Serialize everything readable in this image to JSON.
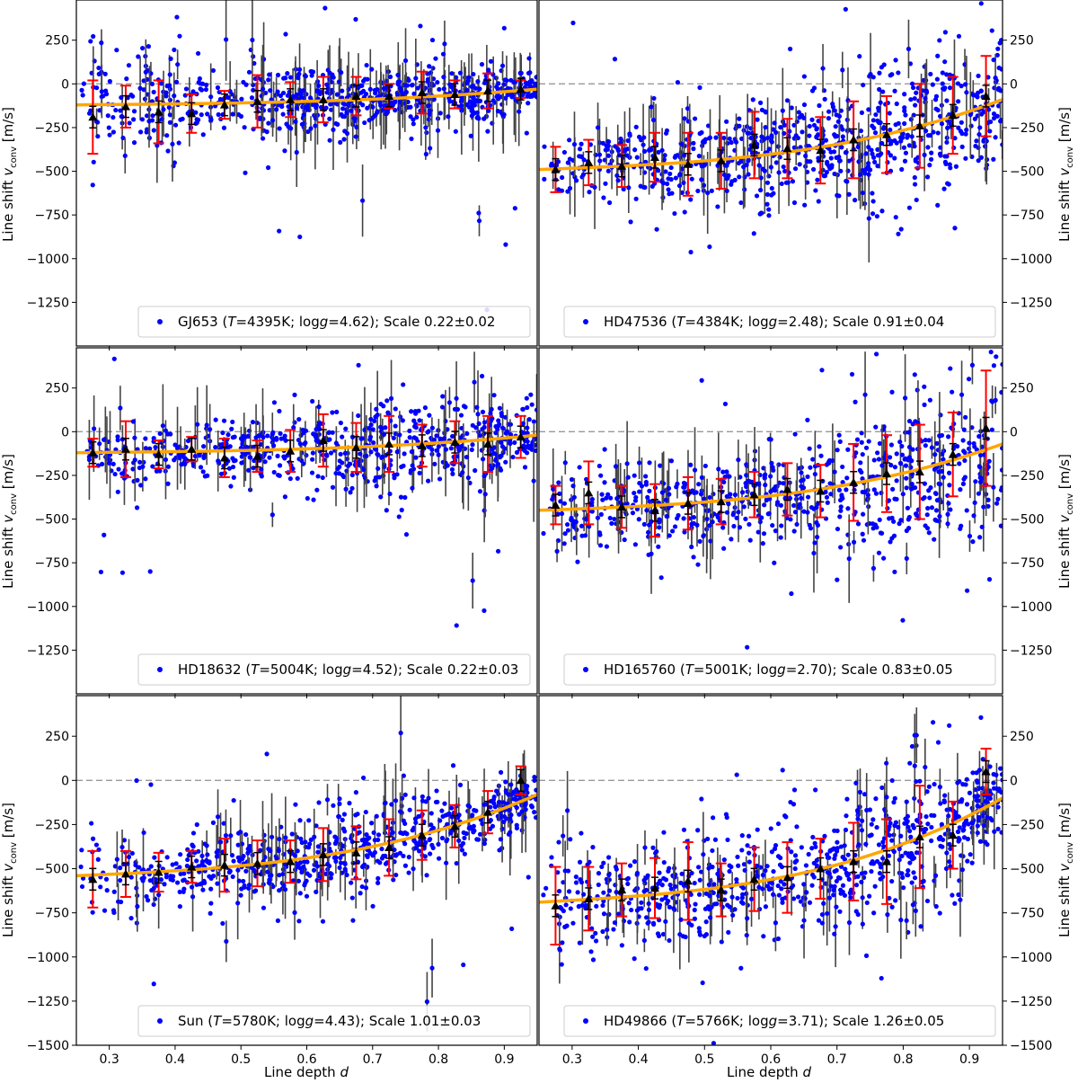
{
  "figure": {
    "xlabel": "Line depth d",
    "xlabel_main": "Line depth ",
    "xlabel_italic": "d",
    "ylabel": "Line shift v_conv [m/s]",
    "ylabel_main": "Line shift ",
    "ylabel_var": "v",
    "ylabel_sub": "conv",
    "ylabel_unit": " [m/s]",
    "xlim": [
      0.25,
      0.95
    ],
    "ylim": [
      -1500,
      480
    ],
    "xticks": [
      0.3,
      0.4,
      0.5,
      0.6,
      0.7,
      0.8,
      0.9
    ],
    "xtick_labels": [
      "0.3",
      "0.4",
      "0.5",
      "0.6",
      "0.7",
      "0.8",
      "0.9"
    ],
    "yticks": [
      -1500,
      -1250,
      -1000,
      -750,
      -500,
      -250,
      0,
      250
    ],
    "ytick_labels": [
      "−1500",
      "−1250",
      "−1000",
      "−750",
      "−500",
      "−250",
      "0",
      "250"
    ],
    "colors": {
      "points": "#0000ff",
      "point_errorbar": "#444444",
      "fit": "#ffa500",
      "bin_errorbar": "#ff0000",
      "bin_marker": "#000000",
      "zero_line": "#999999",
      "frame": "#000000"
    },
    "legend_location": "lower-right"
  },
  "chart_data": [
    {
      "type": "scatter",
      "star": "GJ653",
      "legend": {
        "name": "GJ653",
        "T": "4395K",
        "logg": "4.62",
        "scale": "0.22±0.02"
      },
      "trend": {
        "start": -120,
        "end": -30
      },
      "binned": {
        "x": [
          0.275,
          0.325,
          0.375,
          0.425,
          0.475,
          0.525,
          0.575,
          0.625,
          0.675,
          0.725,
          0.775,
          0.825,
          0.875,
          0.925
        ],
        "y": [
          -190,
          -130,
          -160,
          -170,
          -120,
          -100,
          -90,
          -90,
          -70,
          -70,
          -50,
          -60,
          -40,
          -30
        ],
        "err": [
          210,
          120,
          180,
          110,
          80,
          150,
          100,
          130,
          110,
          70,
          120,
          80,
          100,
          50
        ]
      }
    },
    {
      "type": "scatter",
      "star": "HD47536",
      "legend": {
        "name": "HD47536",
        "T": "4384K",
        "logg": "2.48",
        "scale": "0.91±0.04"
      },
      "trend": {
        "start": -490,
        "end": -90
      },
      "binned": {
        "x": [
          0.275,
          0.325,
          0.375,
          0.425,
          0.475,
          0.525,
          0.575,
          0.625,
          0.675,
          0.725,
          0.775,
          0.825,
          0.875,
          0.925
        ],
        "y": [
          -490,
          -450,
          -470,
          -420,
          -460,
          -440,
          -350,
          -370,
          -380,
          -320,
          -290,
          -240,
          -180,
          -70
        ],
        "err": [
          130,
          130,
          120,
          140,
          180,
          160,
          190,
          170,
          190,
          220,
          220,
          240,
          220,
          230
        ]
      }
    },
    {
      "type": "scatter",
      "star": "HD18632",
      "legend": {
        "name": "HD18632",
        "T": "5004K",
        "logg": "4.52",
        "scale": "0.22±0.03"
      },
      "trend": {
        "start": -120,
        "end": -20
      },
      "binned": {
        "x": [
          0.275,
          0.325,
          0.375,
          0.425,
          0.475,
          0.525,
          0.575,
          0.625,
          0.675,
          0.725,
          0.775,
          0.825,
          0.875,
          0.925
        ],
        "y": [
          -120,
          -100,
          -130,
          -100,
          -150,
          -140,
          -110,
          -50,
          -90,
          -70,
          -80,
          -60,
          -70,
          -30
        ],
        "err": [
          80,
          160,
          80,
          70,
          110,
          90,
          120,
          150,
          140,
          160,
          120,
          120,
          160,
          120
        ]
      }
    },
    {
      "type": "scatter",
      "star": "HD165760",
      "legend": {
        "name": "HD165760",
        "T": "5001K",
        "logg": "2.70",
        "scale": "0.83±0.05"
      },
      "trend": {
        "start": -450,
        "end": -70
      },
      "binned": {
        "x": [
          0.275,
          0.325,
          0.375,
          0.425,
          0.475,
          0.525,
          0.575,
          0.625,
          0.675,
          0.725,
          0.775,
          0.825,
          0.875,
          0.925
        ],
        "y": [
          -420,
          -350,
          -430,
          -450,
          -410,
          -400,
          -360,
          -330,
          -340,
          -290,
          -240,
          -230,
          -130,
          20
        ],
        "err": [
          110,
          180,
          120,
          150,
          150,
          130,
          130,
          150,
          150,
          220,
          220,
          270,
          240,
          330
        ]
      }
    },
    {
      "type": "scatter",
      "star": "Sun",
      "legend": {
        "name": "Sun",
        "T": "5780K",
        "logg": "4.43",
        "scale": "1.01±0.03"
      },
      "trend": {
        "start": -540,
        "end": -80
      },
      "binned": {
        "x": [
          0.275,
          0.325,
          0.375,
          0.425,
          0.475,
          0.525,
          0.575,
          0.625,
          0.675,
          0.725,
          0.775,
          0.825,
          0.875,
          0.925
        ],
        "y": [
          -560,
          -530,
          -520,
          -490,
          -480,
          -470,
          -460,
          -420,
          -410,
          -380,
          -310,
          -260,
          -180,
          0
        ],
        "err": [
          160,
          130,
          110,
          90,
          150,
          130,
          120,
          150,
          150,
          160,
          140,
          120,
          120,
          80
        ]
      }
    },
    {
      "type": "scatter",
      "star": "HD49866",
      "legend": {
        "name": "HD49866",
        "T": "5766K",
        "logg": "3.71",
        "scale": "1.26±0.05"
      },
      "trend": {
        "start": -690,
        "end": -100
      },
      "binned": {
        "x": [
          0.275,
          0.325,
          0.375,
          0.425,
          0.475,
          0.525,
          0.575,
          0.625,
          0.675,
          0.725,
          0.775,
          0.825,
          0.875,
          0.925
        ],
        "y": [
          -710,
          -670,
          -620,
          -610,
          -570,
          -620,
          -560,
          -550,
          -500,
          -460,
          -460,
          -320,
          -310,
          50
        ],
        "err": [
          220,
          180,
          150,
          170,
          220,
          150,
          180,
          200,
          170,
          220,
          240,
          290,
          190,
          130
        ]
      }
    }
  ]
}
